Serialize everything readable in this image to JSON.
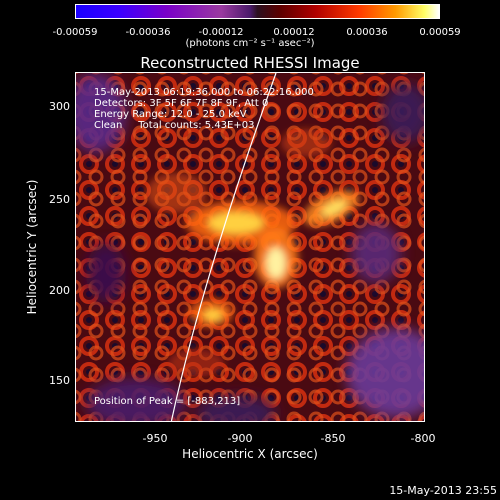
{
  "colorbar": {
    "ticks": [
      "-0.00059",
      "-0.00036",
      "-0.00012",
      "0.00012",
      "0.00036",
      "0.00059"
    ],
    "units": "(photons cm⁻² s⁻¹ asec⁻²)"
  },
  "title": "Reconstructed RHESSI Image",
  "info": {
    "time_range": "15-May-2013 06:19:36.000 to 06:22:16.000",
    "detectors": "Detectors: 3F 5F 6F 7F 8F 9F, Att 0",
    "energy": "Energy Range: 12.0 - 25.0 keV",
    "method": "Clean     Total counts: 5.43E+03",
    "peak": "Position of Peak = [-883,213]"
  },
  "axes": {
    "xlabel": "Heliocentric X (arcsec)",
    "ylabel": "Heliocentric Y (arcsec)",
    "xticks": [
      "-950",
      "-900",
      "-850",
      "-800"
    ],
    "yticks": [
      "300",
      "250",
      "200",
      "150"
    ]
  },
  "footer": {
    "timestamp": "15-May-2013 23:55"
  },
  "colors": {
    "background": "#000000",
    "text": "#ffffff",
    "limb_line": "#ffffff"
  }
}
